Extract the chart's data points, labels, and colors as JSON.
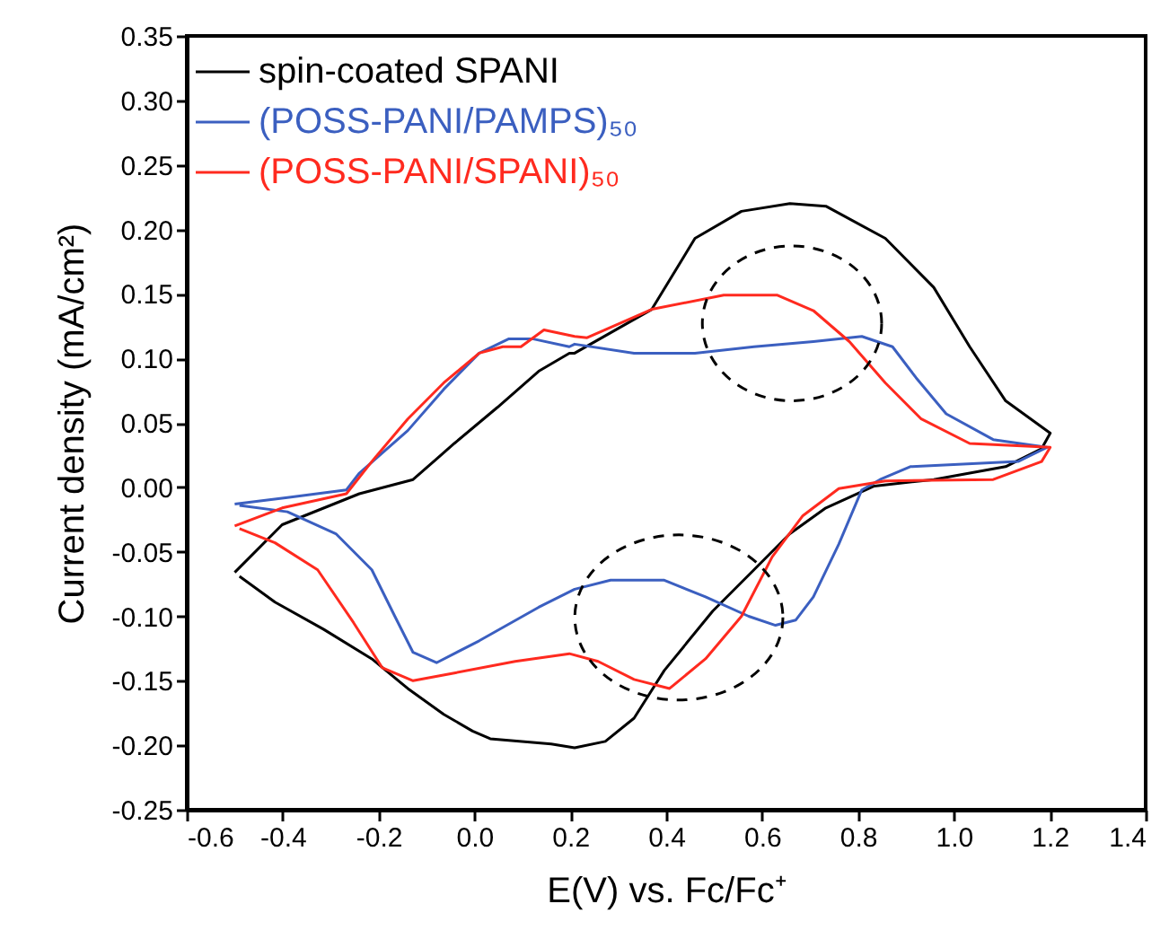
{
  "chart_data": {
    "type": "line",
    "xlabel": "E(V) vs. Fc/Fc⁺",
    "ylabel": "Current density (mA/cm²)",
    "xlim": [
      -0.6,
      1.4
    ],
    "ylim": [
      -0.25,
      0.35
    ],
    "xticks": [
      {
        "value": -0.6,
        "label": "-0.6"
      },
      {
        "value": -0.4,
        "label": "-0.4"
      },
      {
        "value": -0.2,
        "label": "-0.2"
      },
      {
        "value": 0,
        "label": "0.0"
      },
      {
        "value": 0.2,
        "label": "0.2"
      },
      {
        "value": 0.4,
        "label": "0.4"
      },
      {
        "value": 0.6,
        "label": "0.6"
      },
      {
        "value": 0.8,
        "label": "0.8"
      },
      {
        "value": 1,
        "label": "1.0"
      },
      {
        "value": 1.2,
        "label": "1.2"
      },
      {
        "value": 1.4,
        "label": "1.4"
      }
    ],
    "yticks": [
      {
        "value": -0.25,
        "label": "-0.25"
      },
      {
        "value": -0.2,
        "label": "-0.20"
      },
      {
        "value": -0.15,
        "label": "-0.15"
      },
      {
        "value": -0.1,
        "label": "-0.10"
      },
      {
        "value": -0.05,
        "label": "-0.05"
      },
      {
        "value": 0,
        "label": "0.00"
      },
      {
        "value": 0.05,
        "label": "0.05"
      },
      {
        "value": 0.1,
        "label": "0.10"
      },
      {
        "value": 0.15,
        "label": "0.15"
      },
      {
        "value": 0.2,
        "label": "0.20"
      },
      {
        "value": 0.25,
        "label": "0.25"
      },
      {
        "value": 0.3,
        "label": "0.30"
      },
      {
        "value": 0.35,
        "label": "0.35"
      }
    ],
    "legend": "top left",
    "grid": false,
    "series": [
      {
        "name": "spin-coated SPANI",
        "color": "#000000",
        "x": [
          -0.5,
          -0.401,
          -0.24,
          -0.128,
          -0.042,
          0.048,
          0.134,
          0.198,
          0.209,
          0.37,
          0.46,
          0.557,
          0.658,
          0.733,
          0.857,
          0.958,
          1.033,
          1.108,
          1.201,
          1.183,
          1.108,
          0.958,
          0.834,
          0.733,
          0.658,
          0.583,
          0.497,
          0.396,
          0.333,
          0.273,
          0.209,
          0.16,
          0.033,
          -0.004,
          -0.064,
          -0.139,
          -0.214,
          -0.315,
          -0.416,
          -0.49
        ],
        "values": [
          -0.066,
          -0.029,
          -0.005,
          0.006,
          0.034,
          0.062,
          0.09,
          0.104,
          0.104,
          0.138,
          0.193,
          0.214,
          0.22,
          0.218,
          0.193,
          0.155,
          0.109,
          0.067,
          0.042,
          0.03,
          0.016,
          0.006,
          0.001,
          -0.016,
          -0.036,
          -0.064,
          -0.096,
          -0.142,
          -0.179,
          -0.197,
          -0.202,
          -0.199,
          -0.195,
          -0.189,
          -0.176,
          -0.156,
          -0.133,
          -0.11,
          -0.089,
          -0.069
        ]
      },
      {
        "name": "(POSS-PANI/PAMPS)₅₀",
        "color": "#3b5fc0",
        "x": [
          -0.5,
          -0.39,
          -0.267,
          -0.24,
          -0.139,
          -0.064,
          0.01,
          0.071,
          0.123,
          0.198,
          0.209,
          0.333,
          0.46,
          0.583,
          0.707,
          0.808,
          0.872,
          0.921,
          0.984,
          1.082,
          1.194,
          1.134,
          0.909,
          0.846,
          0.808,
          0.76,
          0.707,
          0.67,
          0.628,
          0.572,
          0.482,
          0.396,
          0.284,
          0.209,
          0.134,
          0.01,
          -0.079,
          -0.128,
          -0.166,
          -0.214,
          -0.289,
          -0.39,
          -0.49
        ],
        "values": [
          -0.013,
          -0.008,
          -0.002,
          0.011,
          0.044,
          0.076,
          0.104,
          0.115,
          0.115,
          0.109,
          0.111,
          0.104,
          0.104,
          0.109,
          0.113,
          0.117,
          0.109,
          0.085,
          0.057,
          0.037,
          0.031,
          0.02,
          0.016,
          0.006,
          -0.002,
          -0.044,
          -0.085,
          -0.103,
          -0.107,
          -0.1,
          -0.085,
          -0.072,
          -0.072,
          -0.079,
          -0.093,
          -0.119,
          -0.136,
          -0.128,
          -0.1,
          -0.064,
          -0.036,
          -0.019,
          -0.014
        ]
      },
      {
        "name": "(POSS-PANI/SPANI)₅₀",
        "color": "#ff2a1f",
        "x": [
          -0.5,
          -0.401,
          -0.267,
          -0.214,
          -0.139,
          -0.064,
          0.01,
          0.059,
          0.097,
          0.145,
          0.209,
          0.235,
          0.37,
          0.52,
          0.632,
          0.707,
          0.782,
          0.857,
          0.932,
          1.033,
          1.201,
          1.183,
          1.082,
          0.857,
          0.76,
          0.685,
          0.621,
          0.557,
          0.482,
          0.407,
          0.333,
          0.258,
          0.198,
          0.085,
          -0.042,
          -0.128,
          -0.192,
          -0.252,
          -0.327,
          -0.416,
          -0.49
        ],
        "values": [
          -0.03,
          -0.016,
          -0.005,
          0.02,
          0.053,
          0.081,
          0.104,
          0.109,
          0.109,
          0.122,
          0.117,
          0.116,
          0.138,
          0.149,
          0.149,
          0.137,
          0.113,
          0.081,
          0.053,
          0.034,
          0.031,
          0.02,
          0.006,
          0.005,
          -0.001,
          -0.022,
          -0.054,
          -0.1,
          -0.133,
          -0.156,
          -0.149,
          -0.135,
          -0.129,
          -0.135,
          -0.144,
          -0.15,
          -0.14,
          -0.105,
          -0.064,
          -0.043,
          -0.032
        ]
      }
    ]
  }
}
